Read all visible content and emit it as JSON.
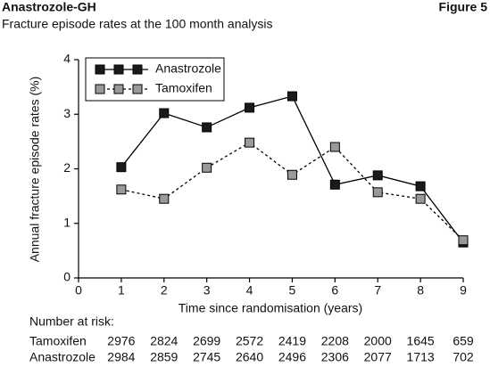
{
  "chart_data": {
    "type": "line",
    "title": "Anastrozole-GH",
    "figure_label": "Figure 5",
    "subtitle": "Fracture episode rates at the 100 month analysis",
    "x_label": "Time since randomisation (years)",
    "y_label": "Annual fracture episode rates (%)",
    "x": [
      1,
      2,
      3,
      4,
      5,
      6,
      7,
      8,
      9
    ],
    "series": [
      {
        "name": "Anastrozole",
        "color": "#000000",
        "marker_fill": "#1a1a1a",
        "line_style": "solid",
        "values": [
          2.03,
          3.02,
          2.76,
          3.12,
          3.33,
          1.71,
          1.88,
          1.68,
          0.65
        ]
      },
      {
        "name": "Tamoxifen",
        "color": "#000000",
        "marker_fill": "#9a9a9a",
        "line_style": "dashed",
        "values": [
          1.62,
          1.45,
          2.02,
          2.48,
          1.89,
          2.4,
          1.57,
          1.45,
          0.69
        ]
      }
    ],
    "xlim": [
      0,
      9
    ],
    "ylim": [
      0,
      4
    ],
    "xticks": [
      0,
      1,
      2,
      3,
      4,
      5,
      6,
      7,
      8,
      9
    ],
    "yticks": [
      0,
      1,
      2,
      3,
      4
    ],
    "grid": false,
    "legend": "top-left",
    "risk_table": {
      "title": "Number at risk:",
      "rows": [
        {
          "name": "Tamoxifen",
          "values": [
            2976,
            2824,
            2699,
            2572,
            2419,
            2208,
            2000,
            1645,
            659
          ]
        },
        {
          "name": "Anastrozole",
          "values": [
            2984,
            2859,
            2745,
            2640,
            2496,
            2306,
            2077,
            1713,
            702
          ]
        }
      ]
    }
  }
}
